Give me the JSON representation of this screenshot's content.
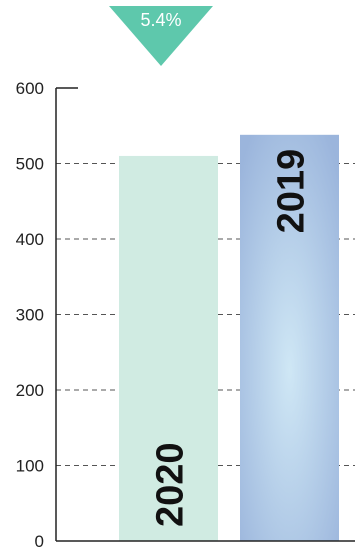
{
  "chart_data": {
    "type": "bar",
    "categories": [
      "2020",
      "2019"
    ],
    "values": [
      510,
      538
    ],
    "ylim": [
      0,
      600
    ],
    "yticks": [
      0,
      100,
      200,
      300,
      400,
      500,
      600
    ],
    "grid": true,
    "colors": {
      "bar_2020": "#d0ebe2",
      "bar_2019_edge": "#9bb5dc",
      "bar_2019_center": "#cfe7f5",
      "badge": "#5ec8ac",
      "axis": "#222222",
      "grid": "#555555"
    },
    "annotation": {
      "text": "5.4%"
    }
  }
}
